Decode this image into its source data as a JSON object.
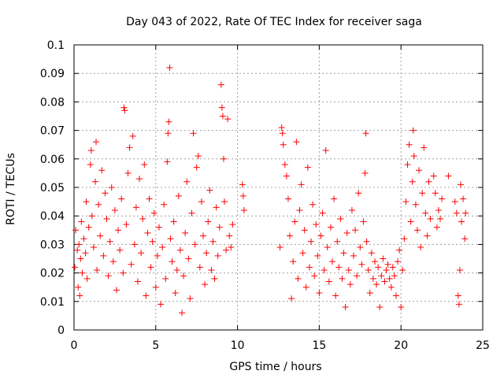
{
  "chart_data": {
    "type": "scatter",
    "title": "Day 043 of 2022, Rate Of TEC Index for receiver saga",
    "xlabel": "GPS time / hours",
    "ylabel": "ROTI / TECUs",
    "xlim": [
      0,
      25
    ],
    "ylim": [
      0,
      0.1
    ],
    "xticks": [
      0,
      5,
      10,
      15,
      20,
      25
    ],
    "xtick_labels": [
      "0",
      "5",
      "10",
      "15",
      "20",
      "25"
    ],
    "yticks": [
      0,
      0.01,
      0.02,
      0.03,
      0.04,
      0.05,
      0.06,
      0.07,
      0.08,
      0.09,
      0.1
    ],
    "ytick_labels": [
      "0",
      "0.01",
      "0.02",
      "0.03",
      "0.04",
      "0.05",
      "0.06",
      "0.07",
      "0.08",
      "0.09",
      "0.1"
    ],
    "grid": true,
    "marker": "+",
    "color": "#ff0000",
    "series": [
      {
        "points": [
          [
            0.05,
            0.022
          ],
          [
            0.1,
            0.035
          ],
          [
            0.2,
            0.028
          ],
          [
            0.25,
            0.015
          ],
          [
            0.3,
            0.03
          ],
          [
            0.35,
            0.012
          ],
          [
            0.4,
            0.025
          ],
          [
            0.45,
            0.038
          ],
          [
            0.5,
            0.02
          ],
          [
            0.6,
            0.032
          ],
          [
            0.7,
            0.027
          ],
          [
            0.75,
            0.045
          ],
          [
            0.8,
            0.018
          ],
          [
            0.9,
            0.036
          ],
          [
            1.0,
            0.058
          ],
          [
            1.05,
            0.063
          ],
          [
            1.1,
            0.04
          ],
          [
            1.2,
            0.029
          ],
          [
            1.3,
            0.052
          ],
          [
            1.35,
            0.066
          ],
          [
            1.4,
            0.021
          ],
          [
            1.5,
            0.044
          ],
          [
            1.6,
            0.033
          ],
          [
            1.7,
            0.056
          ],
          [
            1.8,
            0.026
          ],
          [
            1.9,
            0.048
          ],
          [
            2.0,
            0.039
          ],
          [
            2.1,
            0.019
          ],
          [
            2.2,
            0.031
          ],
          [
            2.3,
            0.05
          ],
          [
            2.4,
            0.024
          ],
          [
            2.5,
            0.042
          ],
          [
            2.6,
            0.014
          ],
          [
            2.7,
            0.035
          ],
          [
            2.8,
            0.028
          ],
          [
            2.9,
            0.046
          ],
          [
            3.0,
            0.02
          ],
          [
            3.05,
            0.078
          ],
          [
            3.1,
            0.077
          ],
          [
            3.2,
            0.037
          ],
          [
            3.3,
            0.055
          ],
          [
            3.4,
            0.064
          ],
          [
            3.5,
            0.023
          ],
          [
            3.6,
            0.068
          ],
          [
            3.7,
            0.03
          ],
          [
            3.8,
            0.043
          ],
          [
            3.9,
            0.017
          ],
          [
            4.0,
            0.053
          ],
          [
            4.1,
            0.027
          ],
          [
            4.2,
            0.039
          ],
          [
            4.3,
            0.058
          ],
          [
            4.4,
            0.012
          ],
          [
            4.5,
            0.034
          ],
          [
            4.6,
            0.046
          ],
          [
            4.7,
            0.022
          ],
          [
            4.8,
            0.031
          ],
          [
            4.9,
            0.041
          ],
          [
            5.0,
            0.015
          ],
          [
            5.1,
            0.026
          ],
          [
            5.2,
            0.036
          ],
          [
            5.3,
            0.009
          ],
          [
            5.4,
            0.029
          ],
          [
            5.5,
            0.044
          ],
          [
            5.6,
            0.018
          ],
          [
            5.7,
            0.059
          ],
          [
            5.75,
            0.069
          ],
          [
            5.8,
            0.073
          ],
          [
            5.85,
            0.092
          ],
          [
            5.9,
            0.032
          ],
          [
            6.0,
            0.024
          ],
          [
            6.1,
            0.038
          ],
          [
            6.2,
            0.013
          ],
          [
            6.3,
            0.021
          ],
          [
            6.4,
            0.047
          ],
          [
            6.5,
            0.028
          ],
          [
            6.6,
            0.006
          ],
          [
            6.7,
            0.019
          ],
          [
            6.8,
            0.034
          ],
          [
            6.9,
            0.052
          ],
          [
            7.0,
            0.025
          ],
          [
            7.1,
            0.011
          ],
          [
            7.2,
            0.041
          ],
          [
            7.3,
            0.069
          ],
          [
            7.4,
            0.03
          ],
          [
            7.5,
            0.057
          ],
          [
            7.6,
            0.061
          ],
          [
            7.7,
            0.022
          ],
          [
            7.8,
            0.045
          ],
          [
            7.9,
            0.033
          ],
          [
            8.0,
            0.016
          ],
          [
            8.1,
            0.027
          ],
          [
            8.2,
            0.038
          ],
          [
            8.3,
            0.049
          ],
          [
            8.4,
            0.021
          ],
          [
            8.5,
            0.031
          ],
          [
            8.6,
            0.018
          ],
          [
            8.7,
            0.043
          ],
          [
            8.8,
            0.026
          ],
          [
            8.9,
            0.036
          ],
          [
            9.0,
            0.086
          ],
          [
            9.05,
            0.078
          ],
          [
            9.1,
            0.075
          ],
          [
            9.15,
            0.06
          ],
          [
            9.2,
            0.045
          ],
          [
            9.3,
            0.028
          ],
          [
            9.4,
            0.074
          ],
          [
            9.5,
            0.033
          ],
          [
            9.6,
            0.029
          ],
          [
            9.7,
            0.037
          ],
          [
            10.3,
            0.051
          ],
          [
            10.35,
            0.047
          ],
          [
            10.4,
            0.042
          ],
          [
            12.6,
            0.029
          ],
          [
            12.7,
            0.071
          ],
          [
            12.75,
            0.069
          ],
          [
            12.8,
            0.065
          ],
          [
            12.9,
            0.058
          ],
          [
            13.0,
            0.054
          ],
          [
            13.1,
            0.046
          ],
          [
            13.2,
            0.033
          ],
          [
            13.3,
            0.011
          ],
          [
            13.4,
            0.024
          ],
          [
            13.5,
            0.038
          ],
          [
            13.6,
            0.066
          ],
          [
            13.7,
            0.018
          ],
          [
            13.8,
            0.042
          ],
          [
            13.9,
            0.051
          ],
          [
            14.0,
            0.027
          ],
          [
            14.1,
            0.035
          ],
          [
            14.2,
            0.015
          ],
          [
            14.3,
            0.057
          ],
          [
            14.4,
            0.022
          ],
          [
            14.5,
            0.031
          ],
          [
            14.6,
            0.044
          ],
          [
            14.7,
            0.019
          ],
          [
            14.8,
            0.037
          ],
          [
            14.9,
            0.026
          ],
          [
            15.0,
            0.013
          ],
          [
            15.1,
            0.033
          ],
          [
            15.2,
            0.041
          ],
          [
            15.3,
            0.021
          ],
          [
            15.4,
            0.063
          ],
          [
            15.5,
            0.029
          ],
          [
            15.6,
            0.017
          ],
          [
            15.7,
            0.036
          ],
          [
            15.8,
            0.024
          ],
          [
            15.9,
            0.046
          ],
          [
            16.0,
            0.012
          ],
          [
            16.1,
            0.031
          ],
          [
            16.2,
            0.022
          ],
          [
            16.3,
            0.039
          ],
          [
            16.4,
            0.018
          ],
          [
            16.5,
            0.027
          ],
          [
            16.6,
            0.008
          ],
          [
            16.7,
            0.034
          ],
          [
            16.8,
            0.021
          ],
          [
            16.9,
            0.016
          ],
          [
            17.0,
            0.042
          ],
          [
            17.1,
            0.026
          ],
          [
            17.2,
            0.035
          ],
          [
            17.3,
            0.019
          ],
          [
            17.4,
            0.048
          ],
          [
            17.5,
            0.029
          ],
          [
            17.6,
            0.023
          ],
          [
            17.7,
            0.038
          ],
          [
            17.8,
            0.055
          ],
          [
            17.85,
            0.069
          ],
          [
            17.9,
            0.031
          ],
          [
            18.0,
            0.021
          ],
          [
            18.1,
            0.013
          ],
          [
            18.2,
            0.027
          ],
          [
            18.3,
            0.018
          ],
          [
            18.4,
            0.024
          ],
          [
            18.5,
            0.016
          ],
          [
            18.6,
            0.022
          ],
          [
            18.7,
            0.008
          ],
          [
            18.8,
            0.019
          ],
          [
            18.9,
            0.025
          ],
          [
            19.0,
            0.017
          ],
          [
            19.1,
            0.021
          ],
          [
            19.2,
            0.023
          ],
          [
            19.3,
            0.018
          ],
          [
            19.4,
            0.015
          ],
          [
            19.5,
            0.022
          ],
          [
            19.6,
            0.019
          ],
          [
            19.7,
            0.012
          ],
          [
            19.8,
            0.024
          ],
          [
            19.9,
            0.028
          ],
          [
            20.0,
            0.008
          ],
          [
            20.1,
            0.021
          ],
          [
            20.2,
            0.032
          ],
          [
            20.3,
            0.045
          ],
          [
            20.4,
            0.058
          ],
          [
            20.5,
            0.065
          ],
          [
            20.6,
            0.038
          ],
          [
            20.7,
            0.052
          ],
          [
            20.75,
            0.07
          ],
          [
            20.8,
            0.061
          ],
          [
            20.9,
            0.044
          ],
          [
            21.0,
            0.035
          ],
          [
            21.1,
            0.056
          ],
          [
            21.2,
            0.029
          ],
          [
            21.3,
            0.048
          ],
          [
            21.4,
            0.064
          ],
          [
            21.5,
            0.041
          ],
          [
            21.6,
            0.033
          ],
          [
            21.7,
            0.052
          ],
          [
            21.8,
            0.039
          ],
          [
            22.0,
            0.054
          ],
          [
            22.1,
            0.048
          ],
          [
            22.2,
            0.036
          ],
          [
            22.3,
            0.042
          ],
          [
            22.4,
            0.039
          ],
          [
            22.5,
            0.046
          ],
          [
            22.9,
            0.054
          ],
          [
            23.3,
            0.045
          ],
          [
            23.4,
            0.041
          ],
          [
            23.5,
            0.012
          ],
          [
            23.55,
            0.009
          ],
          [
            23.6,
            0.021
          ],
          [
            23.65,
            0.051
          ],
          [
            23.7,
            0.038
          ],
          [
            23.8,
            0.046
          ],
          [
            23.9,
            0.032
          ],
          [
            23.95,
            0.041
          ]
        ]
      }
    ]
  }
}
